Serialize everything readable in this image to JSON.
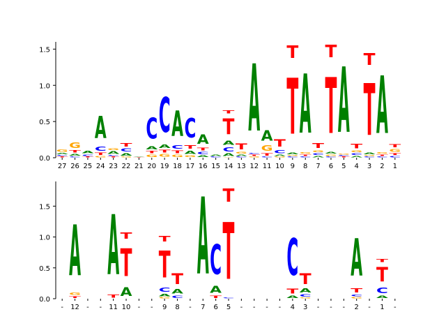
{
  "chart_data": [
    {
      "type": "sequence-logo",
      "title": "",
      "xlabel": "",
      "ylabel": "",
      "ylim": [
        0,
        1.6
      ],
      "yticks": [
        "0.0",
        "0.5",
        "1.0",
        "1.5"
      ],
      "colors": {
        "A": "#008000",
        "C": "#0000ff",
        "G": "#ffa500",
        "T": "#ff0000"
      },
      "positions": [
        {
          "label": "27",
          "stack": [
            [
              "T",
              0.02
            ],
            [
              "C",
              0.02
            ],
            [
              "A",
              0.03
            ],
            [
              "G",
              0.05
            ]
          ]
        },
        {
          "label": "26",
          "stack": [
            [
              "C",
              0.02
            ],
            [
              "A",
              0.04
            ],
            [
              "T",
              0.05
            ],
            [
              "G",
              0.12
            ]
          ]
        },
        {
          "label": "25",
          "stack": [
            [
              "T",
              0.02
            ],
            [
              "C",
              0.03
            ],
            [
              "A",
              0.05
            ]
          ]
        },
        {
          "label": "24",
          "stack": [
            [
              "G",
              0.03
            ],
            [
              "T",
              0.05
            ],
            [
              "C",
              0.09
            ],
            [
              "A",
              0.49
            ]
          ]
        },
        {
          "label": "23",
          "stack": [
            [
              "T",
              0.02
            ],
            [
              "C",
              0.02
            ],
            [
              "A",
              0.06
            ],
            [
              "G",
              0.04
            ]
          ]
        },
        {
          "label": "22",
          "stack": [
            [
              "G",
              0.02
            ],
            [
              "A",
              0.05
            ],
            [
              "C",
              0.07
            ],
            [
              "T",
              0.08
            ]
          ]
        },
        {
          "label": "21",
          "stack": [
            [
              "T",
              0.01
            ],
            [
              "A",
              0.01
            ]
          ]
        },
        {
          "label": "20",
          "stack": [
            [
              "G",
              0.05
            ],
            [
              "T",
              0.05
            ],
            [
              "A",
              0.07
            ],
            [
              "C",
              0.46
            ]
          ]
        },
        {
          "label": "19",
          "stack": [
            [
              "G",
              0.06
            ],
            [
              "T",
              0.06
            ],
            [
              "A",
              0.08
            ],
            [
              "C",
              0.77
            ]
          ]
        },
        {
          "label": "18",
          "stack": [
            [
              "G",
              0.05
            ],
            [
              "T",
              0.06
            ],
            [
              "C",
              0.08
            ],
            [
              "A",
              0.56
            ]
          ]
        },
        {
          "label": "17",
          "stack": [
            [
              "G",
              0.04
            ],
            [
              "A",
              0.07
            ],
            [
              "T",
              0.08
            ],
            [
              "C",
              0.43
            ]
          ]
        },
        {
          "label": "16",
          "stack": [
            [
              "A",
              0.04
            ],
            [
              "C",
              0.05
            ],
            [
              "T",
              0.06
            ],
            [
              "A",
              0.21
            ]
          ]
        },
        {
          "label": "15",
          "stack": [
            [
              "C",
              0.02
            ],
            [
              "A",
              0.03
            ]
          ]
        },
        {
          "label": "14",
          "stack": [
            [
              "G",
              0.01
            ],
            [
              "A",
              0.06
            ],
            [
              "C",
              0.09
            ],
            [
              "A",
              0.09
            ],
            [
              "T",
              0.35
            ],
            [
              "T",
              0.07
            ]
          ]
        },
        {
          "label": "13",
          "stack": [
            [
              "C",
              0.02
            ],
            [
              "A",
              0.03
            ],
            [
              "G",
              0.04
            ],
            [
              "T",
              0.13
            ]
          ]
        },
        {
          "label": "12",
          "stack": [
            [
              "G",
              0.02
            ],
            [
              "T",
              0.03
            ],
            [
              "C",
              0.02
            ],
            [
              "A",
              1.49
            ]
          ]
        },
        {
          "label": "11",
          "stack": [
            [
              "C",
              0.02
            ],
            [
              "T",
              0.05
            ],
            [
              "G",
              0.12
            ],
            [
              "A",
              0.23
            ]
          ]
        },
        {
          "label": "10",
          "stack": [
            [
              "G",
              0.02
            ],
            [
              "A",
              0.03
            ],
            [
              "C",
              0.07
            ],
            [
              "T",
              0.16
            ]
          ]
        },
        {
          "label": "9",
          "stack": [
            [
              "C",
              0.02
            ],
            [
              "G",
              0.02
            ],
            [
              "A",
              0.04
            ],
            [
              "T",
              1.24
            ],
            [
              "T",
              0.28
            ]
          ]
        },
        {
          "label": "8",
          "stack": [
            [
              "C",
              0.02
            ],
            [
              "T",
              0.03
            ],
            [
              "G",
              0.03
            ],
            [
              "A",
              1.31
            ]
          ]
        },
        {
          "label": "7",
          "stack": [
            [
              "A",
              0.03
            ],
            [
              "C",
              0.04
            ],
            [
              "G",
              0.04
            ],
            [
              "T",
              0.11
            ]
          ]
        },
        {
          "label": "6",
          "stack": [
            [
              "C",
              0.02
            ],
            [
              "G",
              0.03
            ],
            [
              "A",
              0.04
            ],
            [
              "T",
              1.24
            ],
            [
              "T",
              0.28
            ]
          ]
        },
        {
          "label": "5",
          "stack": [
            [
              "T",
              0.02
            ],
            [
              "C",
              0.02
            ],
            [
              "G",
              0.02
            ],
            [
              "A",
              1.45
            ]
          ]
        },
        {
          "label": "4",
          "stack": [
            [
              "A",
              0.03
            ],
            [
              "C",
              0.04
            ],
            [
              "G",
              0.04
            ],
            [
              "T",
              0.1
            ]
          ]
        },
        {
          "label": "3",
          "stack": [
            [
              "C",
              0.02
            ],
            [
              "G",
              0.02
            ],
            [
              "A",
              0.04
            ],
            [
              "T",
              1.15
            ],
            [
              "T",
              0.26
            ]
          ]
        },
        {
          "label": "2",
          "stack": [
            [
              "C",
              0.02
            ],
            [
              "T",
              0.03
            ],
            [
              "G",
              0.03
            ],
            [
              "A",
              1.28
            ]
          ]
        },
        {
          "label": "1",
          "stack": [
            [
              "C",
              0.03
            ],
            [
              "T",
              0.04
            ],
            [
              "G",
              0.06
            ],
            [
              "T",
              0.07
            ]
          ]
        }
      ]
    },
    {
      "type": "sequence-logo",
      "title": "",
      "xlabel": "",
      "ylabel": "",
      "ylim": [
        0,
        1.9
      ],
      "yticks": [
        "0.0",
        "0.5",
        "1.0",
        "1.5"
      ],
      "colors": {
        "A": "#008000",
        "C": "#0000ff",
        "G": "#ffa500",
        "T": "#ff0000"
      },
      "positions": [
        {
          "label": "-",
          "stack": []
        },
        {
          "label": "12",
          "stack": [
            [
              "T",
              0.05
            ],
            [
              "G",
              0.06
            ],
            [
              "A",
              1.32
            ]
          ]
        },
        {
          "label": "-",
          "stack": []
        },
        {
          "label": "-",
          "stack": []
        },
        {
          "label": "11",
          "stack": [
            [
              "T",
              0.08
            ],
            [
              "A",
              1.56
            ]
          ]
        },
        {
          "label": "10",
          "stack": [
            [
              "A",
              0.22
            ],
            [
              "T",
              0.72
            ],
            [
              "T",
              0.16
            ]
          ]
        },
        {
          "label": "-",
          "stack": []
        },
        {
          "label": "-",
          "stack": []
        },
        {
          "label": "9",
          "stack": [
            [
              "G",
              0.03
            ],
            [
              "A",
              0.06
            ],
            [
              "C",
              0.11
            ],
            [
              "T",
              0.7
            ],
            [
              "T",
              0.14
            ]
          ]
        },
        {
          "label": "8",
          "stack": [
            [
              "C",
              0.06
            ],
            [
              "A",
              0.12
            ],
            [
              "T",
              0.28
            ]
          ]
        },
        {
          "label": "-",
          "stack": []
        },
        {
          "label": "7",
          "stack": [
            [
              "A",
              2.0
            ]
          ]
        },
        {
          "label": "6",
          "stack": [
            [
              "T",
              0.06
            ],
            [
              "A",
              0.18
            ],
            [
              "C",
              0.78
            ]
          ]
        },
        {
          "label": "5",
          "stack": [
            [
              "C",
              0.02
            ],
            [
              "T",
              1.48
            ],
            [
              "T",
              0.34
            ]
          ]
        },
        {
          "label": "-",
          "stack": []
        },
        {
          "label": "-",
          "stack": []
        },
        {
          "label": "-",
          "stack": []
        },
        {
          "label": "-",
          "stack": []
        },
        {
          "label": "4",
          "stack": [
            [
              "A",
              0.06
            ],
            [
              "T",
              0.13
            ],
            [
              "C",
              0.96
            ]
          ]
        },
        {
          "label": "3",
          "stack": [
            [
              "G",
              0.02
            ],
            [
              "C",
              0.06
            ],
            [
              "A",
              0.1
            ],
            [
              "T",
              0.28
            ]
          ]
        },
        {
          "label": "-",
          "stack": []
        },
        {
          "label": "-",
          "stack": []
        },
        {
          "label": "-",
          "stack": []
        },
        {
          "label": "2",
          "stack": [
            [
              "G",
              0.03
            ],
            [
              "C",
              0.05
            ],
            [
              "T",
              0.1
            ],
            [
              "A",
              0.97
            ]
          ]
        },
        {
          "label": "-",
          "stack": []
        },
        {
          "label": "1",
          "stack": [
            [
              "A",
              0.06
            ],
            [
              "C",
              0.14
            ],
            [
              "T",
              0.38
            ],
            [
              "T",
              0.08
            ]
          ]
        },
        {
          "label": "-",
          "stack": []
        }
      ]
    }
  ]
}
